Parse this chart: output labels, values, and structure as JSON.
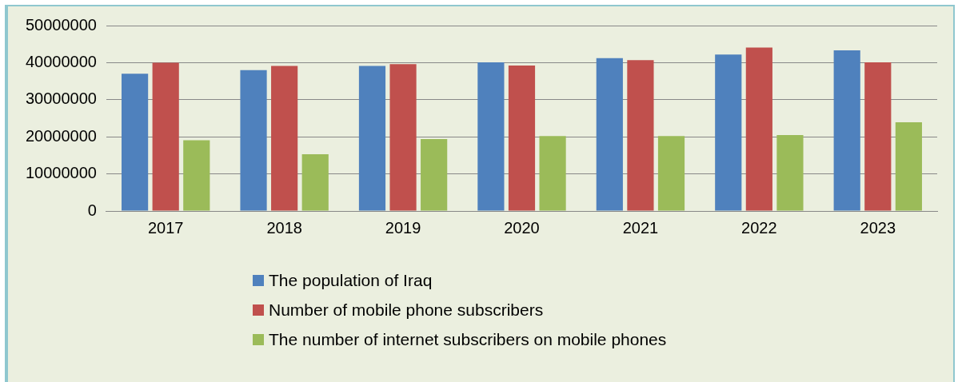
{
  "chart_data": {
    "type": "bar",
    "categories": [
      "2017",
      "2018",
      "2019",
      "2020",
      "2021",
      "2022",
      "2023"
    ],
    "series": [
      {
        "name": "The population of Iraq",
        "color": "#4f81bd",
        "values": [
          37000000,
          38000000,
          39100000,
          40100000,
          41200000,
          42200000,
          43300000
        ]
      },
      {
        "name": "Number of mobile phone subscribers",
        "color": "#c0504d",
        "values": [
          40000000,
          39100000,
          39600000,
          39200000,
          40700000,
          44100000,
          40100000
        ]
      },
      {
        "name": "The number of internet subscribers on mobile phones",
        "color": "#9bbb59",
        "values": [
          19100000,
          15300000,
          19400000,
          20200000,
          20200000,
          20500000,
          23900000
        ]
      }
    ],
    "ylim": [
      0,
      50000000
    ],
    "yticks": [
      0,
      10000000,
      20000000,
      30000000,
      40000000,
      50000000
    ],
    "grid": "y",
    "legend": "bottom"
  }
}
